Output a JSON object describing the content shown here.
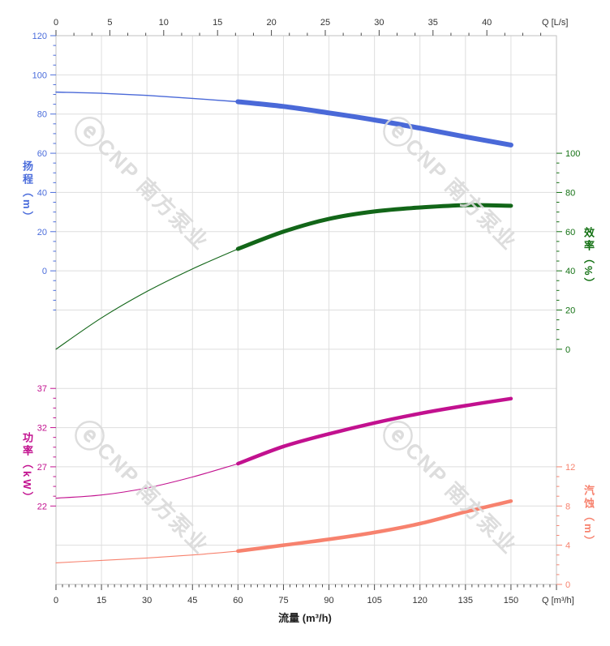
{
  "watermark": {
    "logo_glyph": "ⓔ",
    "text": "CNP 南方泵业",
    "color": "#dadada"
  },
  "chart_data": {
    "type": "line",
    "title": "",
    "grid": true,
    "x_axis_bottom": {
      "title": "流量 (m³/h)",
      "unit_label": "Q [m³/h]",
      "ticks": [
        0,
        15,
        30,
        45,
        60,
        75,
        90,
        105,
        120,
        135,
        150
      ],
      "range": [
        0,
        165
      ]
    },
    "x_axis_top": {
      "unit_label": "Q [L/s]",
      "ticks": [
        0,
        5,
        10,
        15,
        20,
        25,
        30,
        35,
        40
      ],
      "range": [
        0,
        46.5
      ]
    },
    "y_axes": [
      {
        "id": "head",
        "title": "扬程（m）",
        "unit": "m",
        "side": "left",
        "color": "#4a6cdb",
        "ticks": [
          120,
          100,
          80,
          60,
          40,
          20,
          0
        ],
        "range": [
          0,
          120
        ]
      },
      {
        "id": "eff",
        "title": "效率（%）",
        "unit": "%",
        "side": "right",
        "color": "#127012",
        "ticks": [
          100,
          80,
          60,
          40,
          20,
          0
        ],
        "range": [
          0,
          100
        ]
      },
      {
        "id": "power",
        "title": "功率（kW）",
        "unit": "kW",
        "side": "left",
        "color": "#c2118f",
        "ticks": [
          37,
          32,
          27,
          22
        ],
        "range": [
          22,
          37
        ]
      },
      {
        "id": "npsh",
        "title": "汽蚀（m）",
        "unit": "m",
        "side": "right",
        "color": "#f7826e",
        "ticks": [
          12,
          8,
          4,
          0
        ],
        "range": [
          0,
          12
        ]
      }
    ],
    "series": [
      {
        "name": "head",
        "axis": "head",
        "color": "#4a69d8",
        "bold_from_q": 60,
        "points": [
          [
            0,
            91.2
          ],
          [
            15,
            90.6
          ],
          [
            30,
            89.5
          ],
          [
            45,
            88.0
          ],
          [
            60,
            86.3
          ],
          [
            75,
            83.9
          ],
          [
            90,
            80.6
          ],
          [
            105,
            77.0
          ],
          [
            120,
            72.8
          ],
          [
            135,
            68.4
          ],
          [
            150,
            64.2
          ]
        ]
      },
      {
        "name": "efficiency",
        "axis": "eff",
        "color": "#126618",
        "bold_from_q": 60,
        "points": [
          [
            0,
            0
          ],
          [
            15,
            16
          ],
          [
            30,
            29.5
          ],
          [
            45,
            41
          ],
          [
            60,
            51.2
          ],
          [
            75,
            60
          ],
          [
            90,
            66.5
          ],
          [
            105,
            70.3
          ],
          [
            120,
            72.3
          ],
          [
            135,
            73.5
          ],
          [
            150,
            73.2
          ]
        ]
      },
      {
        "name": "power",
        "axis": "power",
        "color": "#c2118f",
        "bold_from_q": 60,
        "points": [
          [
            0,
            23.0
          ],
          [
            15,
            23.4
          ],
          [
            30,
            24.3
          ],
          [
            45,
            25.7
          ],
          [
            60,
            27.4
          ],
          [
            75,
            29.6
          ],
          [
            90,
            31.2
          ],
          [
            105,
            32.6
          ],
          [
            120,
            33.8
          ],
          [
            135,
            34.8
          ],
          [
            150,
            35.7
          ]
        ]
      },
      {
        "name": "npsh",
        "axis": "npsh",
        "color": "#f7826e",
        "bold_from_q": 60,
        "points": [
          [
            0,
            2.2
          ],
          [
            15,
            2.45
          ],
          [
            30,
            2.7
          ],
          [
            45,
            3.0
          ],
          [
            60,
            3.4
          ],
          [
            75,
            4.0
          ],
          [
            90,
            4.6
          ],
          [
            105,
            5.3
          ],
          [
            120,
            6.2
          ],
          [
            135,
            7.4
          ],
          [
            150,
            8.5
          ]
        ]
      }
    ]
  }
}
